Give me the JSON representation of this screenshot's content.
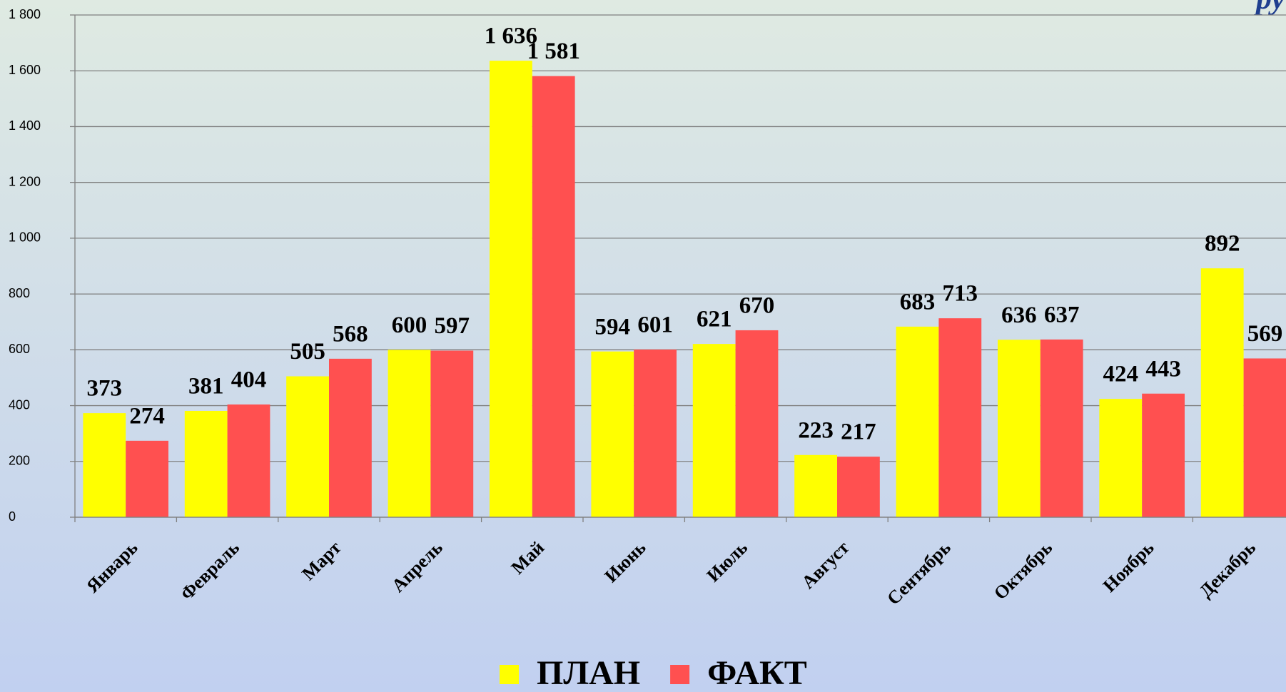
{
  "chart_data": {
    "type": "bar",
    "units_label": "ру",
    "categories": [
      "Январь",
      "Февраль",
      "Март",
      "Апрель",
      "Май",
      "Июнь",
      "Июль",
      "Август",
      "Сентябрь",
      "Октябрь",
      "Ноябрь",
      "Декабрь"
    ],
    "series": [
      {
        "name": "ПЛАН",
        "color": "#ffff00",
        "values": [
          373,
          381,
          505,
          600,
          1636,
          594,
          621,
          223,
          683,
          636,
          424,
          892
        ],
        "value_labels": [
          "373",
          "381",
          "505",
          "600",
          "1 636",
          "594",
          "621",
          "223",
          "683",
          "636",
          "424",
          "892"
        ]
      },
      {
        "name": "ФАКТ",
        "color": "#ff5050",
        "values": [
          274,
          404,
          568,
          597,
          1581,
          601,
          670,
          217,
          713,
          637,
          443,
          569
        ],
        "value_labels": [
          "274",
          "404",
          "568",
          "597",
          "1 581",
          "601",
          "670",
          "217",
          "713",
          "637",
          "443",
          "569"
        ]
      }
    ],
    "ylim": [
      0,
      1800
    ],
    "yticks": [
      0,
      200,
      400,
      600,
      800,
      {
        "value": 1000,
        "label": "1 000"
      },
      {
        "value": 1200,
        "label": "1 200"
      },
      {
        "value": 1400,
        "label": "1 400"
      },
      {
        "value": 1600,
        "label": "1 600"
      },
      {
        "value": 1800,
        "label": "1 800"
      }
    ],
    "grid": true,
    "legend": "bottom"
  }
}
